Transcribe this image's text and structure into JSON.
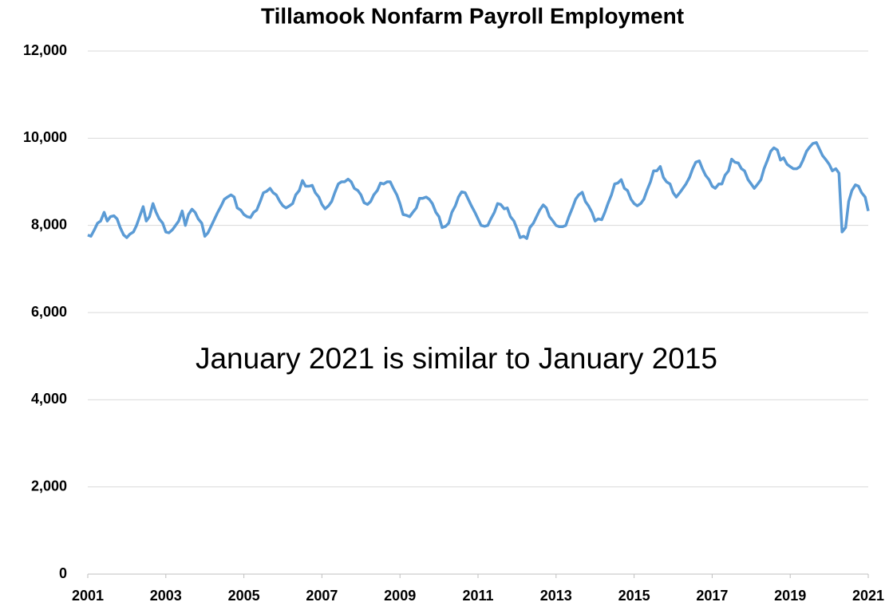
{
  "chart_data": {
    "type": "line",
    "title": "Tillamook Nonfarm Payroll Employment",
    "annotation": "January 2021 is similar to January 2015",
    "x": [
      2001,
      2001.08,
      2001.17,
      2001.25,
      2001.33,
      2001.42,
      2001.5,
      2001.58,
      2001.67,
      2001.75,
      2001.83,
      2001.92,
      2002,
      2002.08,
      2002.17,
      2002.25,
      2002.33,
      2002.42,
      2002.5,
      2002.58,
      2002.67,
      2002.75,
      2002.83,
      2002.92,
      2003,
      2003.08,
      2003.17,
      2003.25,
      2003.33,
      2003.42,
      2003.5,
      2003.58,
      2003.67,
      2003.75,
      2003.83,
      2003.92,
      2004,
      2004.08,
      2004.17,
      2004.25,
      2004.33,
      2004.42,
      2004.5,
      2004.58,
      2004.67,
      2004.75,
      2004.83,
      2004.92,
      2005,
      2005.08,
      2005.17,
      2005.25,
      2005.33,
      2005.42,
      2005.5,
      2005.58,
      2005.67,
      2005.75,
      2005.83,
      2005.92,
      2006,
      2006.08,
      2006.17,
      2006.25,
      2006.33,
      2006.42,
      2006.5,
      2006.58,
      2006.67,
      2006.75,
      2006.83,
      2006.92,
      2007,
      2007.08,
      2007.17,
      2007.25,
      2007.33,
      2007.42,
      2007.5,
      2007.58,
      2007.67,
      2007.75,
      2007.83,
      2007.92,
      2008,
      2008.08,
      2008.17,
      2008.25,
      2008.33,
      2008.42,
      2008.5,
      2008.58,
      2008.67,
      2008.75,
      2008.83,
      2008.92,
      2009,
      2009.08,
      2009.17,
      2009.25,
      2009.33,
      2009.42,
      2009.5,
      2009.58,
      2009.67,
      2009.75,
      2009.83,
      2009.92,
      2010,
      2010.08,
      2010.17,
      2010.25,
      2010.33,
      2010.42,
      2010.5,
      2010.58,
      2010.67,
      2010.75,
      2010.83,
      2010.92,
      2011,
      2011.08,
      2011.17,
      2011.25,
      2011.33,
      2011.42,
      2011.5,
      2011.58,
      2011.67,
      2011.75,
      2011.83,
      2011.92,
      2012,
      2012.08,
      2012.17,
      2012.25,
      2012.33,
      2012.42,
      2012.5,
      2012.58,
      2012.67,
      2012.75,
      2012.83,
      2012.92,
      2013,
      2013.08,
      2013.17,
      2013.25,
      2013.33,
      2013.42,
      2013.5,
      2013.58,
      2013.67,
      2013.75,
      2013.83,
      2013.92,
      2014,
      2014.08,
      2014.17,
      2014.25,
      2014.33,
      2014.42,
      2014.5,
      2014.58,
      2014.67,
      2014.75,
      2014.83,
      2014.92,
      2015,
      2015.08,
      2015.17,
      2015.25,
      2015.33,
      2015.42,
      2015.5,
      2015.58,
      2015.67,
      2015.75,
      2015.83,
      2015.92,
      2016,
      2016.08,
      2016.17,
      2016.25,
      2016.33,
      2016.42,
      2016.5,
      2016.58,
      2016.67,
      2016.75,
      2016.83,
      2016.92,
      2017,
      2017.08,
      2017.17,
      2017.25,
      2017.33,
      2017.42,
      2017.5,
      2017.58,
      2017.67,
      2017.75,
      2017.83,
      2017.92,
      2018,
      2018.08,
      2018.17,
      2018.25,
      2018.33,
      2018.42,
      2018.5,
      2018.58,
      2018.67,
      2018.75,
      2018.83,
      2018.92,
      2019,
      2019.08,
      2019.17,
      2019.25,
      2019.33,
      2019.42,
      2019.5,
      2019.58,
      2019.67,
      2019.75,
      2019.83,
      2019.92,
      2020,
      2020.08,
      2020.17,
      2020.25,
      2020.33,
      2020.42,
      2020.5,
      2020.58,
      2020.67,
      2020.75,
      2020.83,
      2020.92,
      2021
    ],
    "series": [
      {
        "color": "#5b9bd5",
        "values": [
          7780,
          7750,
          7900,
          8050,
          8100,
          8300,
          8100,
          8200,
          8220,
          8150,
          7950,
          7780,
          7720,
          7800,
          7850,
          8000,
          8200,
          8430,
          8100,
          8200,
          8500,
          8300,
          8150,
          8050,
          7850,
          7830,
          7900,
          8000,
          8100,
          8330,
          8000,
          8250,
          8370,
          8300,
          8150,
          8050,
          7750,
          7830,
          8000,
          8150,
          8300,
          8450,
          8600,
          8650,
          8700,
          8650,
          8400,
          8350,
          8250,
          8200,
          8180,
          8300,
          8350,
          8550,
          8750,
          8780,
          8850,
          8750,
          8700,
          8550,
          8450,
          8400,
          8450,
          8500,
          8700,
          8800,
          9030,
          8900,
          8900,
          8920,
          8750,
          8650,
          8480,
          8380,
          8450,
          8550,
          8750,
          8950,
          9000,
          9000,
          9060,
          9000,
          8850,
          8800,
          8700,
          8520,
          8480,
          8550,
          8700,
          8800,
          8970,
          8950,
          9000,
          9000,
          8850,
          8700,
          8500,
          8250,
          8230,
          8200,
          8300,
          8400,
          8620,
          8620,
          8650,
          8600,
          8500,
          8300,
          8200,
          7950,
          7980,
          8050,
          8300,
          8450,
          8650,
          8770,
          8750,
          8600,
          8450,
          8300,
          8150,
          8000,
          7980,
          8000,
          8150,
          8300,
          8500,
          8480,
          8380,
          8400,
          8200,
          8100,
          7920,
          7720,
          7750,
          7700,
          7950,
          8050,
          8200,
          8350,
          8470,
          8400,
          8200,
          8100,
          8000,
          7970,
          7970,
          8000,
          8200,
          8400,
          8600,
          8700,
          8760,
          8550,
          8450,
          8300,
          8100,
          8150,
          8130,
          8300,
          8500,
          8700,
          8950,
          8970,
          9050,
          8850,
          8800,
          8600,
          8500,
          8450,
          8500,
          8600,
          8800,
          9000,
          9250,
          9250,
          9350,
          9100,
          9000,
          8950,
          8750,
          8650,
          8750,
          8850,
          8950,
          9100,
          9300,
          9450,
          9480,
          9300,
          9150,
          9050,
          8900,
          8850,
          8950,
          8950,
          9150,
          9250,
          9520,
          9450,
          9430,
          9300,
          9250,
          9050,
          8950,
          8850,
          8950,
          9050,
          9300,
          9500,
          9700,
          9780,
          9730,
          9500,
          9550,
          9400,
          9350,
          9300,
          9300,
          9350,
          9500,
          9700,
          9800,
          9880,
          9900,
          9750,
          9600,
          9500,
          9400,
          9250,
          9300,
          9200,
          7850,
          7950,
          8550,
          8800,
          8930,
          8900,
          8750,
          8650,
          8330
        ]
      }
    ],
    "xlim": [
      2001,
      2021
    ],
    "xticks": [
      2001,
      2003,
      2005,
      2007,
      2009,
      2011,
      2013,
      2015,
      2017,
      2019,
      2021
    ],
    "ylim": [
      0,
      12000
    ],
    "yticks": [
      0,
      {
        "value": 2000,
        "label": "2,000"
      },
      {
        "value": 4000,
        "label": "4,000"
      },
      {
        "value": 6000,
        "label": "6,000"
      },
      {
        "value": 8000,
        "label": "8,000"
      },
      {
        "value": 10000,
        "label": "10,000"
      },
      {
        "value": 12000,
        "label": "12,000"
      }
    ],
    "grid": true
  }
}
